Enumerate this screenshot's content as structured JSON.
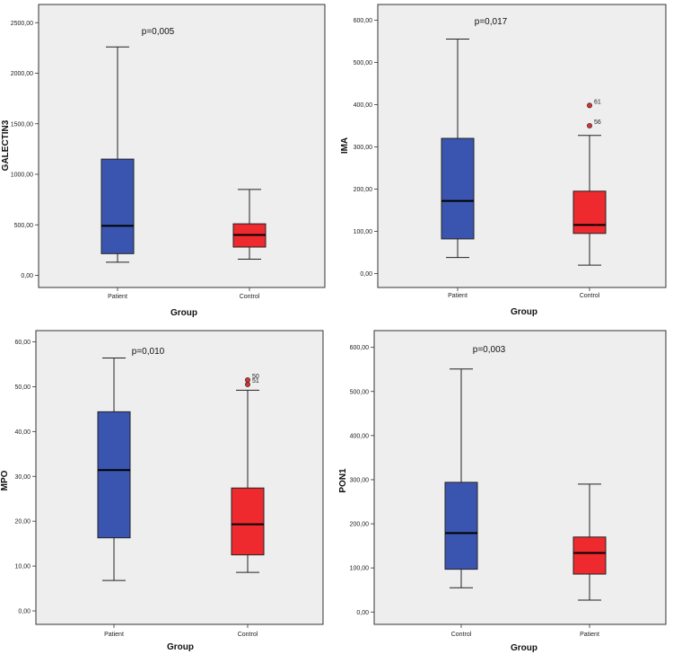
{
  "chart_data": [
    {
      "type": "boxplot",
      "ylabel": "GALECTIN3",
      "xlabel": "Group",
      "annotation": "p=0,005",
      "ylim": [
        -120,
        2680
      ],
      "yticks": [
        {
          "value": 0,
          "label": "0,00"
        },
        {
          "value": 500,
          "label": "500,00"
        },
        {
          "value": 1000,
          "label": "1000,00"
        },
        {
          "value": 1500,
          "label": "1500,00"
        },
        {
          "value": 2000,
          "label": "2000,00"
        },
        {
          "value": 2500,
          "label": "2500,00"
        }
      ],
      "groups": [
        {
          "name": "Patient",
          "color": "#3a55b0",
          "whisker_low": 130,
          "q1": 215,
          "median": 490,
          "q3": 1150,
          "whisker_high": 2260,
          "outliers": []
        },
        {
          "name": "Control",
          "color": "#ee2a2f",
          "whisker_low": 160,
          "q1": 280,
          "median": 400,
          "q3": 510,
          "whisker_high": 850,
          "outliers": []
        }
      ]
    },
    {
      "type": "boxplot",
      "ylabel": "IMA",
      "xlabel": "Group",
      "annotation": "p=0,017",
      "ylim": [
        -33,
        637
      ],
      "yticks": [
        {
          "value": 0,
          "label": "0,00"
        },
        {
          "value": 100,
          "label": "100,00"
        },
        {
          "value": 200,
          "label": "200,00"
        },
        {
          "value": 300,
          "label": "300,00"
        },
        {
          "value": 400,
          "label": "400,00"
        },
        {
          "value": 500,
          "label": "500,00"
        },
        {
          "value": 600,
          "label": "600,00"
        }
      ],
      "groups": [
        {
          "name": "Patient",
          "color": "#3a55b0",
          "whisker_low": 38,
          "q1": 82,
          "median": 172,
          "q3": 320,
          "whisker_high": 555,
          "outliers": []
        },
        {
          "name": "Control",
          "color": "#ee2a2f",
          "whisker_low": 20,
          "q1": 95,
          "median": 115,
          "q3": 195,
          "whisker_high": 327,
          "outliers": [
            {
              "value": 398,
              "label": "61"
            },
            {
              "value": 350,
              "label": "56"
            }
          ]
        }
      ]
    },
    {
      "type": "boxplot",
      "ylabel": "MPO",
      "xlabel": "Group",
      "annotation": "p=0,010",
      "ylim": [
        -3,
        62.5
      ],
      "yticks": [
        {
          "value": 0,
          "label": "0,00"
        },
        {
          "value": 10,
          "label": "10,00"
        },
        {
          "value": 20,
          "label": "20,00"
        },
        {
          "value": 30,
          "label": "30,00"
        },
        {
          "value": 40,
          "label": "40,00"
        },
        {
          "value": 50,
          "label": "50,00"
        },
        {
          "value": 60,
          "label": "60,00"
        }
      ],
      "groups": [
        {
          "name": "Patient",
          "color": "#3a55b0",
          "whisker_low": 6.8,
          "q1": 16.3,
          "median": 31.4,
          "q3": 44.4,
          "whisker_high": 56.4,
          "outliers": []
        },
        {
          "name": "Control",
          "color": "#ee2a2f",
          "whisker_low": 8.6,
          "q1": 12.5,
          "median": 19.3,
          "q3": 27.4,
          "whisker_high": 49.2,
          "outliers": [
            {
              "value": 51.5,
              "label": "50"
            },
            {
              "value": 50.5,
              "label": "51"
            }
          ]
        }
      ]
    },
    {
      "type": "boxplot",
      "ylabel": "PON1",
      "xlabel": "Group",
      "annotation": "p=0,003",
      "ylim": [
        -28,
        638
      ],
      "yticks": [
        {
          "value": 0,
          "label": "0,00"
        },
        {
          "value": 100,
          "label": "100,00"
        },
        {
          "value": 200,
          "label": "200,00"
        },
        {
          "value": 300,
          "label": "300,00"
        },
        {
          "value": 400,
          "label": "400,00"
        },
        {
          "value": 500,
          "label": "500,00"
        },
        {
          "value": 600,
          "label": "600,00"
        }
      ],
      "groups": [
        {
          "name": "Control",
          "color": "#3a55b0",
          "whisker_low": 55,
          "q1": 97,
          "median": 179,
          "q3": 294,
          "whisker_high": 551,
          "outliers": []
        },
        {
          "name": "Patient",
          "color": "#ee2a2f",
          "whisker_low": 27,
          "q1": 86,
          "median": 134,
          "q3": 170,
          "whisker_high": 290,
          "outliers": []
        }
      ]
    }
  ]
}
